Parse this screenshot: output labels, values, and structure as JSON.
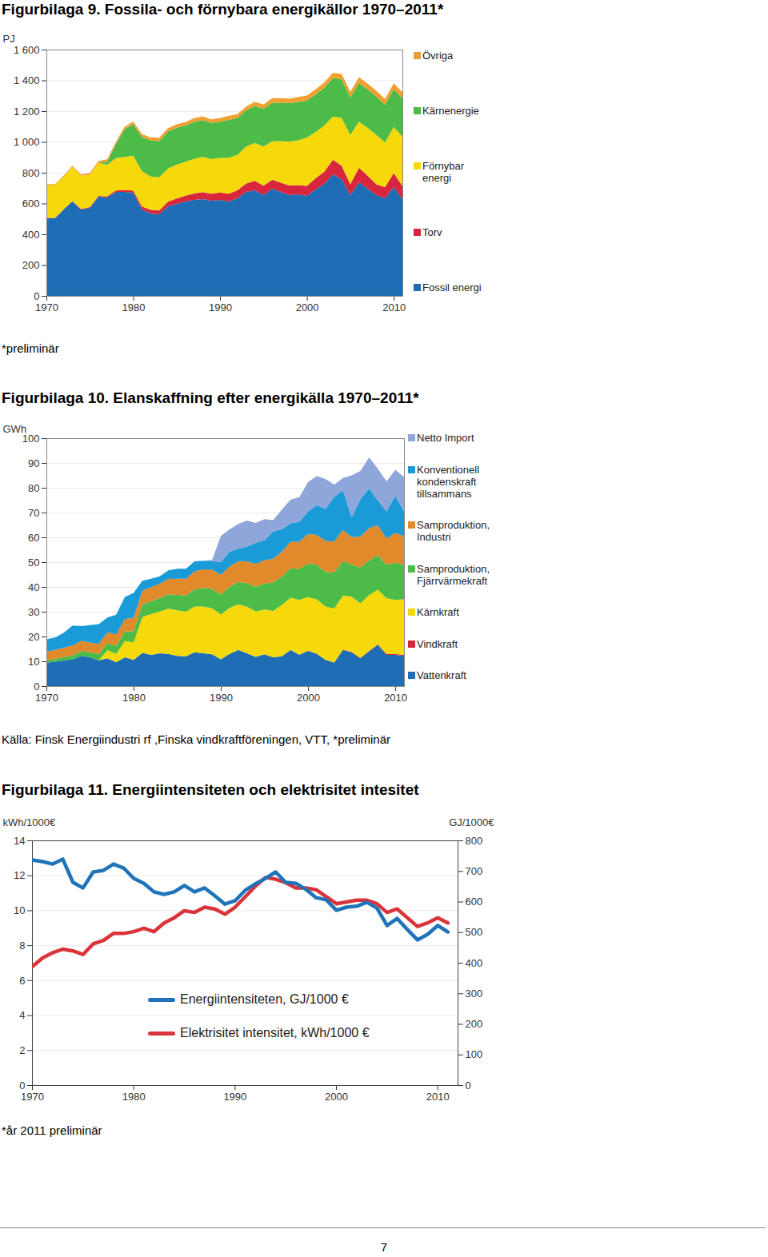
{
  "chart_data": [
    {
      "type": "area",
      "stacked": true,
      "title": "Figurbilaga 9. Fossila- och förnybara energikällor 1970–2011*",
      "y_label": "PJ",
      "note": "*preliminär",
      "x": [
        1970,
        1971,
        1972,
        1973,
        1974,
        1975,
        1976,
        1977,
        1978,
        1979,
        1980,
        1981,
        1982,
        1983,
        1984,
        1985,
        1986,
        1987,
        1988,
        1989,
        1990,
        1991,
        1992,
        1993,
        1994,
        1995,
        1996,
        1997,
        1998,
        1999,
        2000,
        2001,
        2002,
        2003,
        2004,
        2005,
        2006,
        2007,
        2008,
        2009,
        2010,
        2011
      ],
      "series": [
        {
          "name": "Fossil energi",
          "color": "#1f6db5",
          "values": [
            504,
            504,
            561,
            613,
            561,
            571,
            644,
            639,
            675,
            675,
            670,
            561,
            535,
            530,
            582,
            597,
            613,
            623,
            629,
            618,
            623,
            613,
            634,
            675,
            686,
            655,
            696,
            675,
            655,
            660,
            649,
            691,
            727,
            790,
            758,
            655,
            738,
            696,
            655,
            634,
            706,
            629
          ]
        },
        {
          "name": "Torv",
          "color": "#d7263d",
          "values": [
            2,
            2,
            3,
            3,
            4,
            5,
            6,
            8,
            10,
            12,
            15,
            20,
            25,
            25,
            30,
            35,
            38,
            42,
            45,
            45,
            48,
            50,
            52,
            55,
            62,
            60,
            58,
            60,
            62,
            60,
            65,
            72,
            80,
            95,
            88,
            70,
            95,
            85,
            70,
            72,
            92,
            85
          ]
        },
        {
          "name": "Förnybar energi",
          "color": "#f5d90a",
          "values": [
            215,
            215,
            210,
            220,
            215,
            210,
            215,
            205,
            210,
            215,
            225,
            230,
            215,
            215,
            215,
            220,
            220,
            225,
            230,
            225,
            225,
            235,
            230,
            240,
            245,
            255,
            250,
            270,
            285,
            290,
            315,
            300,
            300,
            280,
            310,
            320,
            300,
            310,
            320,
            290,
            300,
            320
          ]
        },
        {
          "name": "Kärnenergie",
          "color": "#4cbb47",
          "values": [
            0,
            0,
            0,
            0,
            0,
            0,
            0,
            20,
            90,
            180,
            205,
            220,
            235,
            235,
            240,
            240,
            235,
            240,
            238,
            235,
            235,
            245,
            240,
            235,
            240,
            245,
            250,
            250,
            250,
            250,
            240,
            245,
            245,
            250,
            250,
            245,
            250,
            250,
            250,
            245,
            245,
            250
          ]
        },
        {
          "name": "Övriga",
          "color": "#f0a030",
          "values": [
            5,
            5,
            8,
            8,
            10,
            12,
            12,
            15,
            15,
            15,
            18,
            20,
            20,
            22,
            22,
            22,
            22,
            24,
            24,
            24,
            25,
            26,
            25,
            25,
            28,
            28,
            30,
            30,
            30,
            32,
            32,
            34,
            34,
            35,
            35,
            36,
            38,
            38,
            38,
            38,
            38,
            40
          ]
        }
      ],
      "xlim": [
        1970,
        2011
      ],
      "xticks": [
        1970,
        1980,
        1990,
        2000,
        2010
      ],
      "ylim": [
        0,
        1600
      ],
      "yticks": [
        0,
        200,
        400,
        600,
        800,
        {
          "value": 1000,
          "label": "1 000"
        },
        {
          "value": 1200,
          "label": "1 200"
        },
        {
          "value": 1400,
          "label": "1 400"
        },
        {
          "value": 1600,
          "label": "1 600"
        }
      ],
      "grid": true,
      "legend": "right"
    },
    {
      "type": "area",
      "stacked": true,
      "title": "Figurbilaga 10. Elanskaffning efter energikälla 1970–2011*",
      "y_label": "GWh",
      "source": "Källa: Finsk Energiindustri rf ,Finska vindkraftföreningen, VTT, *preliminär",
      "x": [
        1970,
        1971,
        1972,
        1973,
        1974,
        1975,
        1976,
        1977,
        1978,
        1979,
        1980,
        1981,
        1982,
        1983,
        1984,
        1985,
        1986,
        1987,
        1988,
        1989,
        1990,
        1991,
        1992,
        1993,
        1994,
        1995,
        1996,
        1997,
        1998,
        1999,
        2000,
        2001,
        2002,
        2003,
        2004,
        2005,
        2006,
        2007,
        2008,
        2009,
        2010,
        2011
      ],
      "series": [
        {
          "name": "Vattenkraft",
          "color": "#1f6db5",
          "values": [
            9.4,
            9.8,
            10.3,
            10.8,
            12.2,
            11.6,
            10.4,
            11.2,
            9.6,
            11.6,
            10.6,
            13.4,
            12.6,
            13.2,
            13.0,
            12.2,
            12.0,
            13.6,
            13.2,
            12.8,
            10.8,
            13.0,
            14.6,
            13.2,
            11.8,
            12.8,
            11.6,
            12.0,
            14.6,
            12.6,
            14.2,
            13.0,
            10.6,
            9.4,
            14.6,
            13.6,
            11.2,
            14.0,
            16.6,
            12.6,
            12.6,
            12.2
          ]
        },
        {
          "name": "Vindkraft",
          "color": "#d7263d",
          "values": [
            0,
            0,
            0,
            0,
            0,
            0,
            0,
            0,
            0,
            0,
            0,
            0,
            0,
            0,
            0,
            0,
            0,
            0,
            0,
            0,
            0,
            0,
            0,
            0.01,
            0.01,
            0.01,
            0.01,
            0.02,
            0.02,
            0.05,
            0.08,
            0.07,
            0.06,
            0.09,
            0.12,
            0.17,
            0.16,
            0.19,
            0.26,
            0.28,
            0.29,
            0.48
          ]
        },
        {
          "name": "Kärnkraft",
          "color": "#f5d90a",
          "values": [
            0,
            0,
            0,
            0,
            0,
            0,
            0,
            3.3,
            3.4,
            6.6,
            7.0,
            14.5,
            16.4,
            16.9,
            18.2,
            18.4,
            18.0,
            18.5,
            18.9,
            18.6,
            18.1,
            18.5,
            18.4,
            18.8,
            18.3,
            18.1,
            18.7,
            20.7,
            21.0,
            22.1,
            21.6,
            21.9,
            21.4,
            21.8,
            21.8,
            22.3,
            22.0,
            22.5,
            22.0,
            22.6,
            21.9,
            22.3
          ]
        },
        {
          "name": "Samproduktion, Fjärrvärmekraft",
          "color": "#4cbb47",
          "values": [
            1.0,
            1.2,
            1.4,
            1.6,
            1.8,
            2.0,
            2.4,
            2.8,
            3.2,
            3.8,
            4.5,
            5.0,
            5.2,
            5.4,
            5.8,
            6.2,
            6.5,
            7.0,
            7.5,
            7.8,
            8.0,
            8.5,
            9.0,
            9.5,
            10.0,
            10.5,
            11.5,
            11.5,
            12.0,
            12.5,
            13.5,
            14,
            14,
            14.5,
            14,
            13,
            14.5,
            14,
            14,
            13.5,
            15,
            14
          ]
        },
        {
          "name": "Samproduktion, Industri",
          "color": "#e08a2c",
          "values": [
            3.5,
            3.6,
            3.8,
            4.0,
            4.2,
            4.0,
            4.2,
            4.4,
            4.6,
            5.0,
            5.5,
            5.6,
            5.6,
            5.8,
            6.2,
            6.5,
            6.8,
            7.2,
            7.5,
            7.8,
            8.0,
            8.2,
            8.4,
            8.8,
            9.2,
            9.4,
            9.6,
            10.0,
            10.6,
            11.0,
            12,
            12,
            12.5,
            12.5,
            12.5,
            11,
            12.5,
            13,
            12,
            10.5,
            12,
            11.5
          ]
        },
        {
          "name": "Konventionell kondenskraft tillsammans",
          "color": "#1a9ad6",
          "values": [
            5.0,
            5.0,
            6.0,
            8.0,
            6.0,
            7.0,
            8.0,
            6.0,
            8.0,
            9.0,
            10.0,
            4.0,
            3.5,
            3.0,
            3.5,
            4.0,
            4.0,
            4.0,
            3.5,
            3.5,
            5.0,
            6.0,
            5.0,
            6.0,
            8.5,
            8.0,
            11.0,
            9.0,
            7.5,
            8.0,
            9,
            12,
            13,
            18,
            16,
            8,
            15,
            16,
            10,
            11,
            15,
            10
          ]
        },
        {
          "name": "Netto Import",
          "color": "#8ea6d9",
          "values": [
            0,
            0,
            0,
            0,
            0,
            0,
            0,
            0,
            0,
            0,
            0,
            0,
            0,
            0,
            0,
            0,
            0,
            0,
            0,
            0.5,
            10.7,
            9.0,
            10.0,
            10.5,
            8.0,
            8.5,
            4.5,
            8.0,
            9.5,
            10.0,
            11.9,
            11.8,
            12.0,
            5.0,
            4.9,
            16.9,
            11.4,
            12.6,
            12.8,
            12.1,
            10.5,
            13.9
          ]
        }
      ],
      "xlim": [
        1970,
        2011
      ],
      "xticks": [
        1970,
        1980,
        1990,
        2000,
        2010
      ],
      "ylim": [
        0,
        100
      ],
      "yticks": [
        0,
        10,
        20,
        30,
        40,
        50,
        60,
        70,
        80,
        90,
        100
      ],
      "grid": true,
      "legend": "right"
    },
    {
      "type": "line",
      "title": "Figurbilaga 11. Energiintensiteten och elektrisitet intesitet",
      "y_label": "kWh/1000€",
      "y2_label": "GJ/1000€",
      "note": "*år 2011 preliminär",
      "x": [
        1970,
        1971,
        1972,
        1973,
        1974,
        1975,
        1976,
        1977,
        1978,
        1979,
        1980,
        1981,
        1982,
        1983,
        1984,
        1985,
        1986,
        1987,
        1988,
        1989,
        1990,
        1991,
        1992,
        1993,
        1994,
        1995,
        1996,
        1997,
        1998,
        1999,
        2000,
        2001,
        2002,
        2003,
        2004,
        2005,
        2006,
        2007,
        2008,
        2009,
        2010,
        2011
      ],
      "series": [
        {
          "name": "Energiintensiteten, GJ/1000 €",
          "color": "#1f73b8",
          "axis": "y2",
          "values": [
            737,
            732,
            724,
            740,
            664,
            646,
            698,
            703,
            724,
            711,
            677,
            661,
            633,
            625,
            633,
            654,
            633,
            646,
            620,
            593,
            604,
            638,
            659,
            677,
            698,
            664,
            661,
            641,
            614,
            607,
            573,
            583,
            586,
            599,
            580,
            523,
            546,
            510,
            476,
            494,
            523,
            502
          ]
        },
        {
          "name": "Elektrisitet intensitet, kWh/1000 €",
          "color": "#d9343a",
          "axis": "y",
          "values": [
            6.8,
            7.3,
            7.6,
            7.8,
            7.7,
            7.5,
            8.1,
            8.3,
            8.7,
            8.7,
            8.8,
            9.0,
            8.8,
            9.3,
            9.6,
            10.0,
            9.9,
            10.2,
            10.1,
            9.8,
            10.2,
            10.8,
            11.4,
            11.9,
            11.8,
            11.6,
            11.3,
            11.3,
            11.2,
            10.8,
            10.4,
            10.5,
            10.6,
            10.6,
            10.4,
            9.9,
            10.1,
            9.6,
            9.1,
            9.3,
            9.6,
            9.3
          ]
        }
      ],
      "xlim": [
        1970,
        2012
      ],
      "xticks": [
        1970,
        1980,
        1990,
        2000,
        2010
      ],
      "ylim": [
        0,
        14
      ],
      "yticks": [
        0,
        2,
        4,
        6,
        8,
        10,
        12,
        14
      ],
      "y2lim": [
        0,
        800
      ],
      "y2ticks": [
        0,
        100,
        200,
        300,
        400,
        500,
        600,
        700,
        800
      ],
      "grid": true,
      "legend": "bottom"
    }
  ],
  "page_number": 7
}
